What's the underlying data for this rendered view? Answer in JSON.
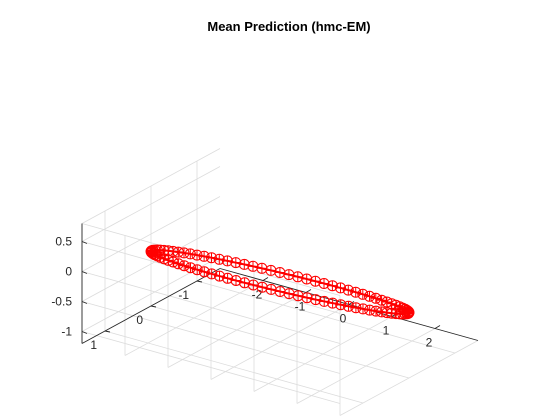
{
  "chart_data": {
    "type": "scatter3d-line",
    "title": "Mean Prediction (hmc-EM)",
    "xlabel": "",
    "ylabel": "",
    "zlabel": "",
    "xlim": [
      -3,
      3
    ],
    "ylim": [
      -1.5,
      1.5
    ],
    "zlim": [
      -1.2,
      0.8
    ],
    "x_ticks": [
      "-2",
      "-1",
      "0",
      "1",
      "2"
    ],
    "y_ticks": [
      "-1",
      "0",
      "1"
    ],
    "z_ticks": [
      "-1",
      "-0.5",
      "0",
      "0.5"
    ],
    "grid": true,
    "series": [
      {
        "style": "line",
        "color": "#ff0000",
        "curve": {
          "kind": "ellipse",
          "x_amplitude": 2.6,
          "y_amplitude": 1.4,
          "z_center": -0.2,
          "z_amplitude": 0.7
        }
      },
      {
        "style": "markers",
        "marker": "circle-plus",
        "color": "#ff0000",
        "count": 90
      }
    ]
  }
}
